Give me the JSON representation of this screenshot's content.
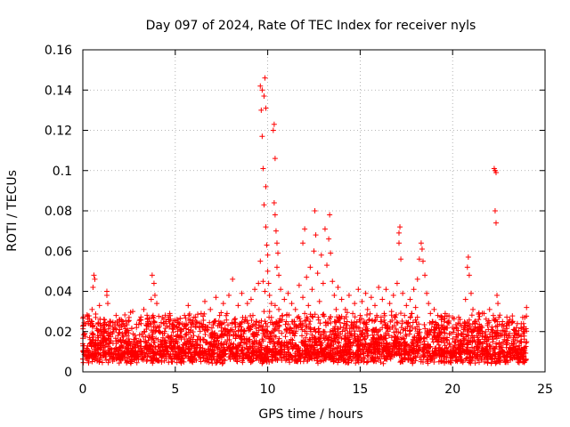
{
  "chart_data": {
    "type": "scatter",
    "title": "Day 097 of 2024, Rate Of TEC Index for receiver nyls",
    "xlabel": "GPS time / hours",
    "ylabel": "ROTI / TECUs",
    "xlim": [
      0,
      25
    ],
    "ylim": [
      0,
      0.16
    ],
    "xticks": [
      0,
      5,
      10,
      15,
      20,
      25
    ],
    "xtick_labels": [
      "0",
      "5",
      "10",
      "15",
      "20",
      "25"
    ],
    "yticks": [
      0,
      0.02,
      0.04,
      0.06,
      0.08,
      0.1,
      0.12,
      0.14,
      0.16
    ],
    "ytick_labels": [
      "0",
      "0.02",
      "0.04",
      "0.06",
      "0.08",
      "0.1",
      "0.12",
      "0.14",
      "0.16"
    ],
    "grid": true,
    "marker": "+",
    "color": "#ff0000",
    "series": [
      {
        "name": "ROTI",
        "points": [
          [
            0.0,
            0.014
          ],
          [
            0.1,
            0.019
          ],
          [
            0.2,
            0.011
          ],
          [
            0.3,
            0.024
          ],
          [
            0.4,
            0.016
          ],
          [
            0.5,
            0.031
          ],
          [
            0.55,
            0.042
          ],
          [
            0.6,
            0.013
          ],
          [
            0.7,
            0.027
          ],
          [
            0.8,
            0.018
          ],
          [
            0.9,
            0.033
          ],
          [
            1.0,
            0.012
          ],
          [
            1.1,
            0.022
          ],
          [
            1.2,
            0.016
          ],
          [
            1.3,
            0.038
          ],
          [
            1.4,
            0.014
          ],
          [
            1.5,
            0.025
          ],
          [
            1.6,
            0.019
          ],
          [
            1.7,
            0.011
          ],
          [
            1.8,
            0.028
          ],
          [
            0.6,
            0.048
          ],
          [
            0.65,
            0.046
          ],
          [
            1.3,
            0.04
          ],
          [
            1.35,
            0.034
          ],
          [
            1.9,
            0.015
          ],
          [
            2.0,
            0.021
          ],
          [
            2.1,
            0.013
          ],
          [
            2.2,
            0.024
          ],
          [
            2.3,
            0.009
          ],
          [
            2.4,
            0.018
          ],
          [
            2.5,
            0.027
          ],
          [
            2.6,
            0.014
          ],
          [
            2.7,
            0.03
          ],
          [
            2.8,
            0.016
          ],
          [
            2.9,
            0.022
          ],
          [
            3.0,
            0.012
          ],
          [
            3.1,
            0.026
          ],
          [
            3.2,
            0.019
          ],
          [
            3.3,
            0.031
          ],
          [
            3.4,
            0.015
          ],
          [
            3.5,
            0.024
          ],
          [
            3.6,
            0.017
          ],
          [
            3.7,
            0.036
          ],
          [
            3.8,
            0.028
          ],
          [
            3.75,
            0.048
          ],
          [
            3.85,
            0.044
          ],
          [
            3.9,
            0.038
          ],
          [
            4.0,
            0.034
          ],
          [
            4.1,
            0.022
          ],
          [
            4.2,
            0.015
          ],
          [
            4.3,
            0.027
          ],
          [
            4.4,
            0.019
          ],
          [
            4.5,
            0.025
          ],
          [
            4.6,
            0.012
          ],
          [
            4.7,
            0.029
          ],
          [
            4.8,
            0.018
          ],
          [
            4.9,
            0.023
          ],
          [
            5.0,
            0.014
          ],
          [
            5.1,
            0.026
          ],
          [
            5.2,
            0.017
          ],
          [
            5.3,
            0.021
          ],
          [
            5.4,
            0.011
          ],
          [
            5.5,
            0.028
          ],
          [
            5.6,
            0.019
          ],
          [
            5.7,
            0.033
          ],
          [
            5.8,
            0.015
          ],
          [
            5.9,
            0.024
          ],
          [
            6.0,
            0.018
          ],
          [
            6.1,
            0.027
          ],
          [
            6.2,
            0.013
          ],
          [
            6.3,
            0.022
          ],
          [
            6.4,
            0.029
          ],
          [
            6.5,
            0.016
          ],
          [
            6.6,
            0.035
          ],
          [
            6.7,
            0.021
          ],
          [
            6.8,
            0.014
          ],
          [
            6.9,
            0.031
          ],
          [
            7.0,
            0.019
          ],
          [
            7.1,
            0.025
          ],
          [
            7.2,
            0.037
          ],
          [
            7.3,
            0.017
          ],
          [
            7.4,
            0.028
          ],
          [
            7.5,
            0.022
          ],
          [
            7.6,
            0.034
          ],
          [
            7.7,
            0.015
          ],
          [
            7.8,
            0.029
          ],
          [
            7.9,
            0.038
          ],
          [
            8.0,
            0.021
          ],
          [
            8.1,
            0.046
          ],
          [
            8.2,
            0.026
          ],
          [
            8.3,
            0.018
          ],
          [
            8.4,
            0.033
          ],
          [
            8.5,
            0.024
          ],
          [
            8.6,
            0.039
          ],
          [
            8.7,
            0.019
          ],
          [
            8.8,
            0.027
          ],
          [
            8.9,
            0.034
          ],
          [
            9.0,
            0.022
          ],
          [
            9.1,
            0.036
          ],
          [
            9.2,
            0.028
          ],
          [
            9.3,
            0.041
          ],
          [
            9.4,
            0.025
          ],
          [
            9.5,
            0.044
          ],
          [
            9.6,
            0.055
          ],
          [
            9.6,
            0.142
          ],
          [
            9.65,
            0.13
          ],
          [
            9.7,
            0.117
          ],
          [
            9.7,
            0.14
          ],
          [
            9.75,
            0.101
          ],
          [
            9.8,
            0.083
          ],
          [
            9.8,
            0.137
          ],
          [
            9.85,
            0.146
          ],
          [
            9.9,
            0.131
          ],
          [
            9.9,
            0.092
          ],
          [
            9.9,
            0.072
          ],
          [
            9.95,
            0.063
          ],
          [
            10.0,
            0.058
          ],
          [
            10.0,
            0.05
          ],
          [
            10.05,
            0.044
          ],
          [
            10.1,
            0.038
          ],
          [
            10.1,
            0.03
          ],
          [
            10.2,
            0.034
          ],
          [
            9.75,
            0.045
          ],
          [
            9.85,
            0.04
          ],
          [
            10.3,
            0.12
          ],
          [
            10.35,
            0.123
          ],
          [
            10.4,
            0.106
          ],
          [
            10.35,
            0.084
          ],
          [
            10.4,
            0.078
          ],
          [
            10.45,
            0.07
          ],
          [
            10.5,
            0.064
          ],
          [
            10.55,
            0.059
          ],
          [
            10.6,
            0.048
          ],
          [
            10.5,
            0.052
          ],
          [
            9.8,
            0.03
          ],
          [
            9.9,
            0.024
          ],
          [
            10.0,
            0.02
          ],
          [
            10.2,
            0.027
          ],
          [
            10.4,
            0.033
          ],
          [
            10.6,
            0.031
          ],
          [
            10.7,
            0.041
          ],
          [
            10.8,
            0.028
          ],
          [
            10.9,
            0.036
          ],
          [
            11.0,
            0.025
          ],
          [
            11.1,
            0.039
          ],
          [
            11.2,
            0.022
          ],
          [
            11.3,
            0.034
          ],
          [
            11.4,
            0.019
          ],
          [
            11.5,
            0.031
          ],
          [
            11.6,
            0.027
          ],
          [
            11.7,
            0.043
          ],
          [
            11.8,
            0.024
          ],
          [
            11.9,
            0.037
          ],
          [
            12.0,
            0.029
          ],
          [
            11.9,
            0.064
          ],
          [
            12.0,
            0.071
          ],
          [
            12.1,
            0.047
          ],
          [
            12.2,
            0.033
          ],
          [
            12.3,
            0.052
          ],
          [
            12.4,
            0.041
          ],
          [
            12.5,
            0.06
          ],
          [
            12.55,
            0.08
          ],
          [
            12.6,
            0.068
          ],
          [
            12.7,
            0.049
          ],
          [
            12.8,
            0.035
          ],
          [
            12.9,
            0.058
          ],
          [
            13.0,
            0.044
          ],
          [
            13.1,
            0.071
          ],
          [
            13.2,
            0.053
          ],
          [
            13.3,
            0.066
          ],
          [
            13.35,
            0.078
          ],
          [
            13.4,
            0.059
          ],
          [
            13.5,
            0.045
          ],
          [
            13.6,
            0.038
          ],
          [
            13.7,
            0.031
          ],
          [
            13.8,
            0.042
          ],
          [
            13.9,
            0.027
          ],
          [
            14.0,
            0.036
          ],
          [
            14.1,
            0.022
          ],
          [
            14.2,
            0.031
          ],
          [
            14.3,
            0.025
          ],
          [
            14.4,
            0.038
          ],
          [
            14.5,
            0.019
          ],
          [
            14.6,
            0.029
          ],
          [
            14.7,
            0.034
          ],
          [
            14.8,
            0.022
          ],
          [
            14.9,
            0.041
          ],
          [
            15.0,
            0.028
          ],
          [
            15.1,
            0.035
          ],
          [
            15.2,
            0.024
          ],
          [
            15.3,
            0.039
          ],
          [
            15.4,
            0.031
          ],
          [
            15.5,
            0.026
          ],
          [
            15.6,
            0.037
          ],
          [
            15.7,
            0.021
          ],
          [
            15.8,
            0.033
          ],
          [
            15.9,
            0.028
          ],
          [
            16.0,
            0.042
          ],
          [
            16.1,
            0.025
          ],
          [
            16.2,
            0.036
          ],
          [
            16.3,
            0.029
          ],
          [
            16.4,
            0.041
          ],
          [
            16.5,
            0.023
          ],
          [
            16.6,
            0.034
          ],
          [
            16.7,
            0.03
          ],
          [
            16.8,
            0.038
          ],
          [
            16.9,
            0.027
          ],
          [
            17.0,
            0.044
          ],
          [
            17.1,
            0.069
          ],
          [
            17.15,
            0.072
          ],
          [
            17.1,
            0.064
          ],
          [
            17.2,
            0.056
          ],
          [
            17.3,
            0.039
          ],
          [
            17.4,
            0.028
          ],
          [
            17.5,
            0.033
          ],
          [
            17.6,
            0.024
          ],
          [
            17.7,
            0.036
          ],
          [
            17.8,
            0.029
          ],
          [
            17.9,
            0.041
          ],
          [
            18.0,
            0.032
          ],
          [
            18.1,
            0.046
          ],
          [
            18.2,
            0.056
          ],
          [
            18.3,
            0.064
          ],
          [
            18.35,
            0.061
          ],
          [
            18.4,
            0.055
          ],
          [
            18.5,
            0.048
          ],
          [
            18.6,
            0.039
          ],
          [
            18.7,
            0.034
          ],
          [
            18.8,
            0.029
          ],
          [
            18.9,
            0.025
          ],
          [
            19.0,
            0.031
          ],
          [
            19.1,
            0.022
          ],
          [
            19.2,
            0.028
          ],
          [
            19.3,
            0.019
          ],
          [
            19.4,
            0.026
          ],
          [
            19.5,
            0.021
          ],
          [
            19.6,
            0.029
          ],
          [
            19.7,
            0.017
          ],
          [
            19.8,
            0.024
          ],
          [
            19.9,
            0.019
          ],
          [
            20.0,
            0.027
          ],
          [
            20.1,
            0.015
          ],
          [
            20.2,
            0.022
          ],
          [
            20.3,
            0.018
          ],
          [
            20.4,
            0.026
          ],
          [
            20.5,
            0.014
          ],
          [
            20.6,
            0.021
          ],
          [
            20.7,
            0.036
          ],
          [
            20.8,
            0.052
          ],
          [
            20.85,
            0.057
          ],
          [
            20.9,
            0.048
          ],
          [
            21.0,
            0.039
          ],
          [
            21.1,
            0.031
          ],
          [
            21.2,
            0.024
          ],
          [
            21.3,
            0.018
          ],
          [
            21.4,
            0.026
          ],
          [
            21.5,
            0.015
          ],
          [
            21.6,
            0.022
          ],
          [
            21.7,
            0.029
          ],
          [
            21.8,
            0.017
          ],
          [
            21.9,
            0.024
          ],
          [
            22.0,
            0.031
          ],
          [
            22.1,
            0.021
          ],
          [
            22.2,
            0.028
          ],
          [
            22.25,
            0.101
          ],
          [
            22.3,
            0.1
          ],
          [
            22.35,
            0.099
          ],
          [
            22.3,
            0.08
          ],
          [
            22.35,
            0.074
          ],
          [
            22.4,
            0.038
          ],
          [
            22.45,
            0.034
          ],
          [
            22.5,
            0.027
          ],
          [
            22.6,
            0.019
          ],
          [
            22.7,
            0.025
          ],
          [
            22.8,
            0.016
          ],
          [
            22.9,
            0.023
          ],
          [
            23.0,
            0.018
          ],
          [
            23.1,
            0.026
          ],
          [
            23.2,
            0.014
          ],
          [
            23.3,
            0.021
          ],
          [
            23.4,
            0.017
          ],
          [
            23.5,
            0.024
          ],
          [
            23.6,
            0.013
          ],
          [
            23.7,
            0.022
          ],
          [
            23.8,
            0.019
          ],
          [
            23.9,
            0.027
          ],
          [
            24.0,
            0.032
          ],
          [
            24.0,
            0.015
          ]
        ]
      }
    ]
  }
}
